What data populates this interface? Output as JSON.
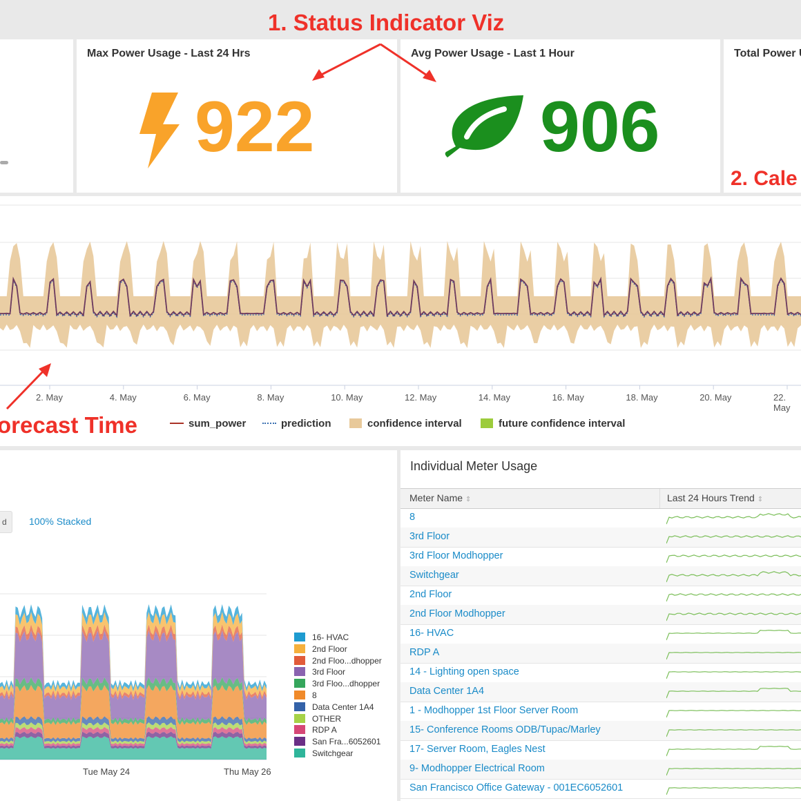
{
  "annotations": {
    "status_indicator": "1. Status Indicator Viz",
    "calendar": "2. Cale",
    "forecast": "orecast Time"
  },
  "panels": {
    "max_power": {
      "title": "Max Power Usage - Last 24 Hrs",
      "value": "922",
      "color": "#f9a32a",
      "icon": "lightning-bolt-icon"
    },
    "avg_power": {
      "title": "Avg Power Usage - Last 1 Hour",
      "value": "906",
      "color": "#1b8f1e",
      "icon": "leaf-icon"
    },
    "total_power": {
      "title": "Total Power U"
    }
  },
  "forecast_chart": {
    "x_ticks": [
      "2. May",
      "4. May",
      "6. May",
      "8. May",
      "10. May",
      "12. May",
      "14. May",
      "16. May",
      "18. May",
      "20. May",
      "22. May"
    ],
    "legend": [
      {
        "label": "sum_power",
        "color": "#a93226"
      },
      {
        "label": "prediction",
        "color": "#3a6fb0"
      },
      {
        "label": "confidence interval",
        "color": "#e8c99a"
      },
      {
        "label": "future confidence interval",
        "color": "#9ccc3c"
      }
    ]
  },
  "stacked_chart": {
    "mode_label": "100% Stacked",
    "x_ticks": [
      "Tue May 24",
      "Thu May 26"
    ],
    "series": [
      {
        "name": "16- HVAC",
        "color": "#1e9bd0"
      },
      {
        "name": "2nd Floor",
        "color": "#f5b03d"
      },
      {
        "name": "2nd Floo...dhopper",
        "color": "#e15b3a"
      },
      {
        "name": "3rd Floor",
        "color": "#8a63b0"
      },
      {
        "name": "3rd Floo...dhopper",
        "color": "#35a65c"
      },
      {
        "name": "8",
        "color": "#f08a2a"
      },
      {
        "name": "Data Center 1A4",
        "color": "#3462a8"
      },
      {
        "name": "OTHER",
        "color": "#a6d247"
      },
      {
        "name": "RDP A",
        "color": "#d64777"
      },
      {
        "name": "San Fra...6052601",
        "color": "#6a2f86"
      },
      {
        "name": "Switchgear",
        "color": "#2fb59a"
      }
    ]
  },
  "meter_table": {
    "title": "Individual Meter Usage",
    "col_name": "Meter Name",
    "col_trend": "Last 24 Hours Trend",
    "rows": [
      {
        "name": "8"
      },
      {
        "name": "3rd Floor"
      },
      {
        "name": "3rd Floor Modhopper"
      },
      {
        "name": "Switchgear"
      },
      {
        "name": "2nd Floor"
      },
      {
        "name": "2nd Floor Modhopper"
      },
      {
        "name": "16- HVAC"
      },
      {
        "name": "RDP A"
      },
      {
        "name": "14 - Lighting open space"
      },
      {
        "name": "Data Center 1A4"
      },
      {
        "name": "1 - Modhopper 1st Floor Server Room"
      },
      {
        "name": "15- Conference Rooms ODB/Tupac/Marley"
      },
      {
        "name": "17- Server Room, Eagles Nest"
      },
      {
        "name": "9- Modhopper Electrical Room"
      },
      {
        "name": "San Francisco Office Gateway - 001EC6052601"
      }
    ]
  }
}
